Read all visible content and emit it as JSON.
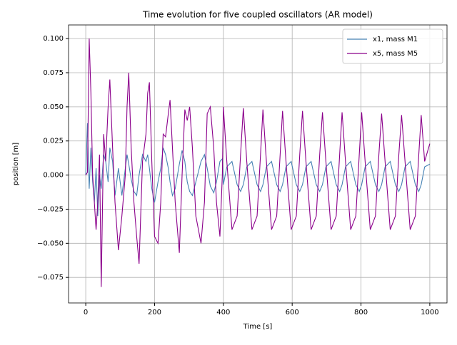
{
  "chart_data": {
    "type": "line",
    "title": "Time evolution for five coupled oscillators (AR model)",
    "xlabel": "Time [s]",
    "ylabel": "position [m]",
    "x": [
      0,
      5,
      10,
      15,
      20,
      25,
      30,
      35,
      40,
      45,
      52,
      58,
      65,
      70,
      78,
      85,
      95,
      105,
      115,
      120,
      125,
      132,
      140,
      148,
      155,
      165,
      175,
      180,
      185,
      192,
      200,
      210,
      218,
      225,
      232,
      240,
      245,
      252,
      260,
      272,
      280,
      288,
      295,
      302,
      310,
      320,
      335,
      345,
      353,
      362,
      372,
      380,
      390,
      397,
      400,
      410,
      425,
      440,
      450,
      458,
      468,
      483,
      498,
      508,
      515,
      525,
      540,
      555,
      565,
      572,
      582,
      597,
      612,
      622,
      630,
      640,
      655,
      670,
      680,
      688,
      698,
      713,
      728,
      738,
      745,
      755,
      770,
      785,
      795,
      802,
      812,
      827,
      842,
      852,
      860,
      870,
      885,
      900,
      910,
      918,
      928,
      943,
      958,
      968,
      975,
      985,
      1000
    ],
    "series": [
      {
        "name": "x1, mass M1",
        "color": "#4682b4",
        "values": [
          0,
          0.038,
          -0.01,
          0.02,
          -0.005,
          -0.02,
          0.005,
          -0.03,
          0.0,
          -0.01,
          0.015,
          0.01,
          -0.005,
          0.02,
          0.01,
          -0.015,
          0.005,
          -0.015,
          0.005,
          0.015,
          0.008,
          -0.003,
          -0.012,
          -0.015,
          0.0,
          0.015,
          0.01,
          0.015,
          0.005,
          -0.01,
          -0.02,
          -0.005,
          0.005,
          0.02,
          0.015,
          0.005,
          -0.005,
          -0.015,
          -0.01,
          0.008,
          0.018,
          0.01,
          -0.005,
          -0.012,
          -0.015,
          -0.005,
          0.01,
          0.015,
          0.005,
          -0.008,
          -0.013,
          -0.005,
          0.01,
          0.012,
          -0.007,
          0.006,
          0.01,
          -0.007,
          -0.012,
          -0.007,
          0.006,
          0.01,
          -0.007,
          -0.012,
          -0.007,
          0.006,
          0.01,
          -0.007,
          -0.012,
          -0.007,
          0.006,
          0.01,
          -0.007,
          -0.012,
          -0.007,
          0.006,
          0.01,
          -0.007,
          -0.012,
          -0.007,
          0.006,
          0.01,
          -0.007,
          -0.012,
          -0.007,
          0.006,
          0.01,
          -0.007,
          -0.012,
          -0.007,
          0.006,
          0.01,
          -0.007,
          -0.012,
          -0.007,
          0.006,
          0.01,
          -0.007,
          -0.012,
          -0.007,
          0.006,
          0.01,
          -0.007,
          -0.012,
          -0.007,
          0.006,
          0.008
        ]
      },
      {
        "name": "x5, mass M5",
        "color": "#8b008b",
        "values": [
          0,
          0.002,
          0.1,
          0.06,
          0.0,
          -0.02,
          -0.04,
          -0.02,
          0.015,
          -0.082,
          0.03,
          0.01,
          0.05,
          0.07,
          0.02,
          -0.02,
          -0.055,
          -0.03,
          0.0,
          0.05,
          0.075,
          0.02,
          -0.02,
          -0.045,
          -0.065,
          0.01,
          0.03,
          0.06,
          0.068,
          0.01,
          -0.045,
          -0.05,
          -0.02,
          0.03,
          0.028,
          0.045,
          0.055,
          0.02,
          -0.02,
          -0.057,
          0.0,
          0.048,
          0.04,
          0.05,
          0.02,
          -0.03,
          -0.05,
          -0.02,
          0.045,
          0.05,
          0.02,
          -0.02,
          -0.045,
          0.0,
          0.05,
          0.01,
          -0.04,
          -0.03,
          0.015,
          0.049,
          0.01,
          -0.04,
          -0.03,
          0.015,
          0.048,
          0.01,
          -0.04,
          -0.03,
          0.015,
          0.047,
          0.01,
          -0.04,
          -0.03,
          0.015,
          0.047,
          0.01,
          -0.04,
          -0.03,
          0.015,
          0.046,
          0.01,
          -0.04,
          -0.03,
          0.015,
          0.046,
          0.01,
          -0.04,
          -0.03,
          0.015,
          0.046,
          0.01,
          -0.04,
          -0.03,
          0.015,
          0.045,
          0.01,
          -0.04,
          -0.03,
          0.015,
          0.044,
          0.01,
          -0.04,
          -0.03,
          0.015,
          0.044,
          0.01,
          0.023
        ]
      }
    ],
    "xlim": [
      -50,
      1050
    ],
    "ylim": [
      -0.0937,
      0.11
    ],
    "xticks": [
      0,
      200,
      400,
      600,
      800,
      1000
    ],
    "yticks": [
      {
        "value": -0.075,
        "label": "−0.075"
      },
      {
        "value": -0.05,
        "label": "−0.050"
      },
      {
        "value": -0.025,
        "label": "−0.025"
      },
      {
        "value": 0,
        "label": "0.000"
      },
      {
        "value": 0.025,
        "label": "0.025"
      },
      {
        "value": 0.05,
        "label": "0.050"
      },
      {
        "value": 0.075,
        "label": "0.075"
      },
      {
        "value": 0.1,
        "label": "0.100"
      }
    ],
    "grid": true,
    "legend": "upper right"
  }
}
